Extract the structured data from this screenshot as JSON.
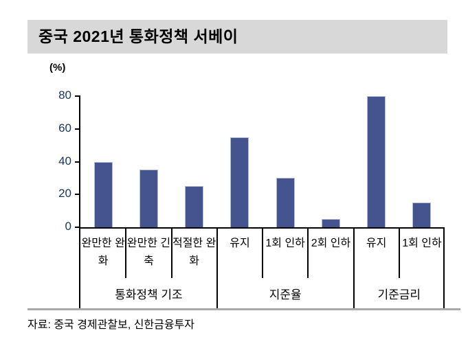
{
  "chart_data": {
    "type": "bar",
    "title": "중국 2021년 통화정책 서베이",
    "ylabel": "(%)",
    "categories": [
      "완만한 완화",
      "완만한 긴축",
      "적절한 완화",
      "유지",
      "1회 인하",
      "2회 인하",
      "유지",
      "1회 인하"
    ],
    "values": [
      40,
      35,
      25,
      55,
      30,
      5,
      80,
      15
    ],
    "groups": [
      {
        "label": "통화정책 기조",
        "span": 3
      },
      {
        "label": "지준율",
        "span": 3
      },
      {
        "label": "기준금리",
        "span": 2
      }
    ],
    "ylim": [
      0,
      80
    ],
    "yticks": [
      0,
      20,
      40,
      60,
      80
    ],
    "grid": false,
    "legend": false
  },
  "source": "자료: 중국 경제관찰보, 신한금융투자",
  "colors": {
    "bar": "#45548F",
    "bar_border": "#B3BCDB",
    "title_bg": "#D8D8D8",
    "separator": "#A9A9A9",
    "axis": "#000000",
    "ytick_text": "#17365D",
    "text": "#000000"
  }
}
